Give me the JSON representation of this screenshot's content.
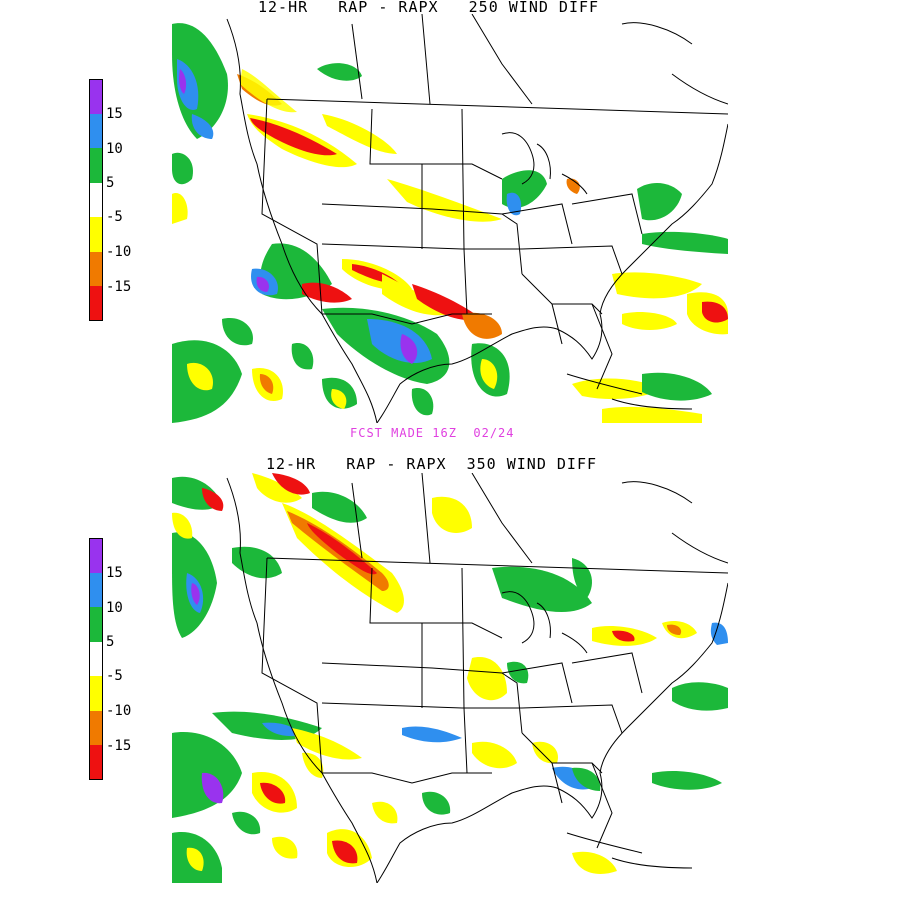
{
  "panels": [
    {
      "title": "12-HR   RAP - RAPX   250 WIND DIFF",
      "legend_labels": [
        "15",
        "10",
        "5",
        "-5",
        "-10",
        "-15"
      ]
    },
    {
      "title": "12-HR   RAP - RAPX  350 WIND DIFF",
      "legend_labels": [
        "15",
        "10",
        "5",
        "-5",
        "-10",
        "-15"
      ]
    }
  ],
  "forecast_note": "FCST MADE 16Z  02/24",
  "legend_colors": [
    "#9933ee",
    "#2f8fef",
    "#1cb83a",
    "#ffffff",
    "#ffff00",
    "#f07a00",
    "#ee1111"
  ],
  "colors": {
    "purple": "#9933ee",
    "blue": "#2f8fef",
    "green": "#1cb83a",
    "yellow": "#ffff00",
    "orange": "#f07a00",
    "red": "#ee1111",
    "title": "#000000",
    "note": "#e040e0"
  }
}
